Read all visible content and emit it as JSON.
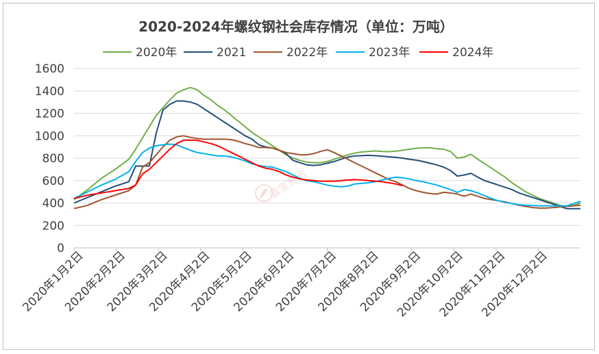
{
  "chart_data": {
    "type": "line",
    "title": "2020-2024年螺纹钢社会库存情况（单位：万吨）",
    "legend_position": "top",
    "grid": true,
    "watermark": "富宝资讯",
    "ylim": [
      0,
      1600
    ],
    "yticks": [
      "0",
      "200",
      "400",
      "600",
      "800",
      "1000",
      "1200",
      "1400",
      "1600"
    ],
    "x_tick_labels": [
      "2020年1月2日",
      "2020年2月2日",
      "2020年3月2日",
      "2020年4月2日",
      "2020年5月2日",
      "2020年6月2日",
      "2020年7月2日",
      "2020年8月2日",
      "2020年9月2日",
      "2020年10月2日",
      "2020年11月2日",
      "2020年12月2日"
    ],
    "x_note": "x values are weeks since start of year",
    "series": [
      {
        "name": "2020年",
        "color": "#70ad47",
        "points": [
          [
            0,
            430
          ],
          [
            2,
            520
          ],
          [
            4,
            620
          ],
          [
            6,
            700
          ],
          [
            8,
            790
          ],
          [
            9,
            880
          ],
          [
            10,
            980
          ],
          [
            11,
            1080
          ],
          [
            12,
            1180
          ],
          [
            13,
            1250
          ],
          [
            14,
            1320
          ],
          [
            15,
            1380
          ],
          [
            16,
            1410
          ],
          [
            17,
            1430
          ],
          [
            18,
            1410
          ],
          [
            19,
            1360
          ],
          [
            20,
            1320
          ],
          [
            21,
            1270
          ],
          [
            22,
            1230
          ],
          [
            23,
            1180
          ],
          [
            24,
            1130
          ],
          [
            25,
            1080
          ],
          [
            26,
            1030
          ],
          [
            27,
            990
          ],
          [
            28,
            950
          ],
          [
            29,
            910
          ],
          [
            30,
            870
          ],
          [
            31,
            830
          ],
          [
            32,
            800
          ],
          [
            33,
            780
          ],
          [
            34,
            765
          ],
          [
            35,
            760
          ],
          [
            36,
            760
          ],
          [
            37,
            770
          ],
          [
            38,
            790
          ],
          [
            39,
            810
          ],
          [
            40,
            830
          ],
          [
            41,
            845
          ],
          [
            42,
            855
          ],
          [
            43,
            860
          ],
          [
            44,
            865
          ],
          [
            45,
            860
          ],
          [
            46,
            858
          ],
          [
            47,
            862
          ],
          [
            48,
            870
          ],
          [
            49,
            880
          ],
          [
            50,
            888
          ],
          [
            51,
            892
          ],
          [
            52,
            892
          ],
          [
            53,
            885
          ],
          [
            54,
            880
          ],
          [
            55,
            860
          ],
          [
            56,
            800
          ],
          [
            57,
            810
          ],
          [
            58,
            835
          ],
          [
            59,
            790
          ],
          [
            60,
            750
          ],
          [
            61,
            710
          ],
          [
            62,
            670
          ],
          [
            63,
            630
          ],
          [
            64,
            580
          ],
          [
            65,
            540
          ],
          [
            66,
            500
          ],
          [
            67,
            470
          ],
          [
            68,
            440
          ],
          [
            69,
            420
          ],
          [
            70,
            400
          ],
          [
            71,
            380
          ],
          [
            72,
            370
          ],
          [
            73,
            380
          ],
          [
            74,
            400
          ]
        ]
      },
      {
        "name": "2021",
        "color": "#1f4e79",
        "points": [
          [
            0,
            400
          ],
          [
            2,
            450
          ],
          [
            4,
            500
          ],
          [
            6,
            550
          ],
          [
            8,
            590
          ],
          [
            9,
            730
          ],
          [
            10,
            730
          ],
          [
            11,
            730
          ],
          [
            12,
            1020
          ],
          [
            13,
            1230
          ],
          [
            14,
            1280
          ],
          [
            15,
            1310
          ],
          [
            16,
            1310
          ],
          [
            17,
            1300
          ],
          [
            18,
            1280
          ],
          [
            19,
            1240
          ],
          [
            20,
            1200
          ],
          [
            21,
            1160
          ],
          [
            22,
            1120
          ],
          [
            23,
            1080
          ],
          [
            24,
            1040
          ],
          [
            25,
            1000
          ],
          [
            26,
            970
          ],
          [
            27,
            920
          ],
          [
            28,
            900
          ],
          [
            29,
            890
          ],
          [
            30,
            870
          ],
          [
            31,
            840
          ],
          [
            32,
            780
          ],
          [
            33,
            760
          ],
          [
            34,
            740
          ],
          [
            35,
            735
          ],
          [
            36,
            740
          ],
          [
            37,
            755
          ],
          [
            38,
            770
          ],
          [
            39,
            790
          ],
          [
            40,
            810
          ],
          [
            41,
            820
          ],
          [
            42,
            822
          ],
          [
            43,
            825
          ],
          [
            44,
            822
          ],
          [
            45,
            818
          ],
          [
            46,
            812
          ],
          [
            47,
            808
          ],
          [
            48,
            800
          ],
          [
            49,
            790
          ],
          [
            50,
            782
          ],
          [
            51,
            770
          ],
          [
            52,
            755
          ],
          [
            53,
            740
          ],
          [
            54,
            720
          ],
          [
            55,
            690
          ],
          [
            56,
            640
          ],
          [
            57,
            650
          ],
          [
            58,
            665
          ],
          [
            59,
            630
          ],
          [
            60,
            600
          ],
          [
            61,
            580
          ],
          [
            62,
            560
          ],
          [
            63,
            540
          ],
          [
            64,
            520
          ],
          [
            65,
            490
          ],
          [
            66,
            470
          ],
          [
            67,
            450
          ],
          [
            68,
            430
          ],
          [
            69,
            410
          ],
          [
            70,
            390
          ],
          [
            71,
            370
          ],
          [
            72,
            350
          ],
          [
            73,
            350
          ],
          [
            74,
            350
          ]
        ]
      },
      {
        "name": "2022年",
        "color": "#a0522d",
        "points": [
          [
            0,
            350
          ],
          [
            2,
            380
          ],
          [
            4,
            430
          ],
          [
            6,
            470
          ],
          [
            8,
            510
          ],
          [
            9,
            560
          ],
          [
            10,
            720
          ],
          [
            11,
            760
          ],
          [
            12,
            830
          ],
          [
            13,
            900
          ],
          [
            14,
            960
          ],
          [
            15,
            990
          ],
          [
            16,
            1000
          ],
          [
            17,
            985
          ],
          [
            18,
            975
          ],
          [
            19,
            970
          ],
          [
            20,
            970
          ],
          [
            21,
            970
          ],
          [
            22,
            970
          ],
          [
            23,
            965
          ],
          [
            24,
            950
          ],
          [
            25,
            930
          ],
          [
            26,
            915
          ],
          [
            27,
            895
          ],
          [
            28,
            895
          ],
          [
            29,
            890
          ],
          [
            30,
            870
          ],
          [
            31,
            850
          ],
          [
            32,
            840
          ],
          [
            33,
            830
          ],
          [
            34,
            830
          ],
          [
            35,
            840
          ],
          [
            36,
            860
          ],
          [
            37,
            875
          ],
          [
            38,
            850
          ],
          [
            39,
            820
          ],
          [
            40,
            790
          ],
          [
            41,
            760
          ],
          [
            42,
            730
          ],
          [
            43,
            700
          ],
          [
            44,
            670
          ],
          [
            45,
            640
          ],
          [
            46,
            610
          ],
          [
            47,
            590
          ],
          [
            48,
            560
          ],
          [
            49,
            530
          ],
          [
            50,
            510
          ],
          [
            51,
            495
          ],
          [
            52,
            485
          ],
          [
            53,
            480
          ],
          [
            54,
            495
          ],
          [
            55,
            490
          ],
          [
            56,
            480
          ],
          [
            57,
            460
          ],
          [
            58,
            480
          ],
          [
            59,
            460
          ],
          [
            60,
            440
          ],
          [
            61,
            430
          ],
          [
            62,
            420
          ],
          [
            63,
            410
          ],
          [
            64,
            395
          ],
          [
            65,
            380
          ],
          [
            66,
            370
          ],
          [
            67,
            360
          ],
          [
            68,
            355
          ],
          [
            69,
            355
          ],
          [
            70,
            360
          ],
          [
            71,
            365
          ],
          [
            72,
            370
          ],
          [
            73,
            375
          ],
          [
            74,
            380
          ]
        ]
      },
      {
        "name": "2023年",
        "color": "#00b0f0",
        "points": [
          [
            0,
            440
          ],
          [
            2,
            500
          ],
          [
            4,
            560
          ],
          [
            6,
            610
          ],
          [
            8,
            680
          ],
          [
            9,
            770
          ],
          [
            10,
            850
          ],
          [
            11,
            890
          ],
          [
            12,
            910
          ],
          [
            13,
            920
          ],
          [
            14,
            925
          ],
          [
            15,
            920
          ],
          [
            16,
            895
          ],
          [
            17,
            870
          ],
          [
            18,
            850
          ],
          [
            19,
            840
          ],
          [
            20,
            830
          ],
          [
            21,
            820
          ],
          [
            22,
            820
          ],
          [
            23,
            810
          ],
          [
            24,
            795
          ],
          [
            25,
            775
          ],
          [
            26,
            750
          ],
          [
            27,
            735
          ],
          [
            28,
            725
          ],
          [
            29,
            720
          ],
          [
            30,
            700
          ],
          [
            31,
            680
          ],
          [
            32,
            650
          ],
          [
            33,
            620
          ],
          [
            34,
            600
          ],
          [
            35,
            590
          ],
          [
            36,
            575
          ],
          [
            37,
            560
          ],
          [
            38,
            550
          ],
          [
            39,
            545
          ],
          [
            40,
            550
          ],
          [
            41,
            570
          ],
          [
            42,
            575
          ],
          [
            43,
            580
          ],
          [
            44,
            590
          ],
          [
            45,
            605
          ],
          [
            46,
            620
          ],
          [
            47,
            630
          ],
          [
            48,
            625
          ],
          [
            49,
            615
          ],
          [
            50,
            600
          ],
          [
            51,
            590
          ],
          [
            52,
            575
          ],
          [
            53,
            560
          ],
          [
            54,
            540
          ],
          [
            55,
            520
          ],
          [
            56,
            495
          ],
          [
            57,
            520
          ],
          [
            58,
            510
          ],
          [
            59,
            490
          ],
          [
            60,
            465
          ],
          [
            61,
            440
          ],
          [
            62,
            420
          ],
          [
            63,
            405
          ],
          [
            64,
            395
          ],
          [
            65,
            385
          ],
          [
            66,
            380
          ],
          [
            67,
            378
          ],
          [
            68,
            375
          ],
          [
            69,
            375
          ],
          [
            70,
            375
          ],
          [
            71,
            375
          ],
          [
            72,
            375
          ],
          [
            73,
            395
          ],
          [
            74,
            415
          ]
        ]
      },
      {
        "name": "2024年",
        "color": "#ff0000",
        "points": [
          [
            0,
            440
          ],
          [
            2,
            470
          ],
          [
            4,
            490
          ],
          [
            6,
            510
          ],
          [
            8,
            530
          ],
          [
            9,
            560
          ],
          [
            10,
            660
          ],
          [
            11,
            700
          ],
          [
            12,
            760
          ],
          [
            13,
            820
          ],
          [
            14,
            880
          ],
          [
            15,
            930
          ],
          [
            16,
            960
          ],
          [
            17,
            960
          ],
          [
            18,
            960
          ],
          [
            19,
            945
          ],
          [
            20,
            930
          ],
          [
            21,
            910
          ],
          [
            22,
            880
          ],
          [
            23,
            850
          ],
          [
            24,
            820
          ],
          [
            25,
            790
          ],
          [
            26,
            760
          ],
          [
            27,
            730
          ],
          [
            28,
            710
          ],
          [
            29,
            700
          ],
          [
            30,
            680
          ],
          [
            31,
            650
          ],
          [
            32,
            630
          ],
          [
            33,
            615
          ],
          [
            34,
            605
          ],
          [
            35,
            600
          ],
          [
            36,
            595
          ],
          [
            37,
            595
          ],
          [
            38,
            595
          ],
          [
            39,
            600
          ],
          [
            40,
            605
          ],
          [
            41,
            608
          ],
          [
            42,
            605
          ],
          [
            43,
            600
          ],
          [
            44,
            595
          ],
          [
            45,
            590
          ],
          [
            46,
            580
          ],
          [
            47,
            570
          ],
          [
            48,
            555
          ]
        ]
      }
    ]
  }
}
